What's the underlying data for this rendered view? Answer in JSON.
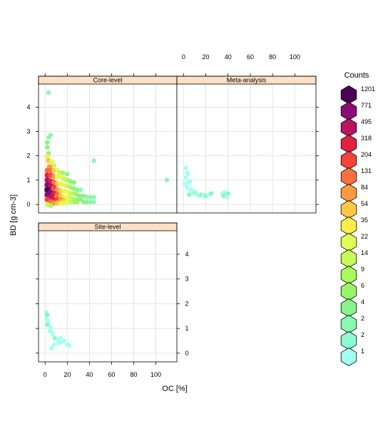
{
  "chart_data": {
    "type": "heatmap",
    "subtype": "hexbin-lattice",
    "xlabel": "OC [%]",
    "ylabel": "BD [g cm-3]",
    "xlim": [
      -6,
      119
    ],
    "ylim": [
      -0.35,
      4.95
    ],
    "x_ticks": [
      0,
      20,
      40,
      60,
      80,
      100
    ],
    "y_ticks": [
      0,
      1,
      2,
      3,
      4
    ],
    "grid": true,
    "panels": [
      {
        "name": "Core-level",
        "hexes": [
          [
            3,
            4.6,
            3
          ],
          [
            5,
            2.85,
            2
          ],
          [
            3,
            2.75,
            2
          ],
          [
            2,
            2.55,
            4
          ],
          [
            2,
            2.35,
            5
          ],
          [
            3,
            2.1,
            6
          ],
          [
            2,
            1.95,
            35
          ],
          [
            3,
            1.8,
            54
          ],
          [
            6,
            1.75,
            22
          ],
          [
            8,
            1.6,
            14
          ],
          [
            4,
            1.55,
            84
          ],
          [
            2,
            1.4,
            131
          ],
          [
            5,
            1.4,
            131
          ],
          [
            8,
            1.4,
            54
          ],
          [
            11,
            1.4,
            22
          ],
          [
            13,
            1.3,
            14
          ],
          [
            16,
            1.3,
            9
          ],
          [
            20,
            1.25,
            4
          ],
          [
            2,
            1.2,
            318
          ],
          [
            5,
            1.2,
            204
          ],
          [
            8,
            1.15,
            84
          ],
          [
            11,
            1.15,
            35
          ],
          [
            14,
            1.1,
            22
          ],
          [
            17,
            1.05,
            14
          ],
          [
            20,
            1.0,
            9
          ],
          [
            23,
            0.95,
            6
          ],
          [
            26,
            0.9,
            4
          ],
          [
            2,
            1.0,
            495
          ],
          [
            5,
            0.95,
            318
          ],
          [
            8,
            0.9,
            131
          ],
          [
            11,
            0.85,
            54
          ],
          [
            14,
            0.85,
            35
          ],
          [
            17,
            0.8,
            22
          ],
          [
            20,
            0.75,
            14
          ],
          [
            23,
            0.7,
            9
          ],
          [
            26,
            0.65,
            6
          ],
          [
            29,
            0.6,
            4
          ],
          [
            32,
            0.6,
            2
          ],
          [
            2,
            0.8,
            771
          ],
          [
            5,
            0.75,
            495
          ],
          [
            8,
            0.7,
            204
          ],
          [
            11,
            0.6,
            84
          ],
          [
            14,
            0.55,
            54
          ],
          [
            17,
            0.55,
            35
          ],
          [
            20,
            0.5,
            22
          ],
          [
            23,
            0.45,
            14
          ],
          [
            26,
            0.45,
            9
          ],
          [
            29,
            0.4,
            6
          ],
          [
            32,
            0.35,
            4
          ],
          [
            35,
            0.35,
            4
          ],
          [
            38,
            0.3,
            2
          ],
          [
            41,
            0.3,
            2
          ],
          [
            44,
            0.3,
            2
          ],
          [
            2,
            0.6,
            1201
          ],
          [
            5,
            0.5,
            771
          ],
          [
            8,
            0.45,
            318
          ],
          [
            11,
            0.4,
            131
          ],
          [
            14,
            0.35,
            54
          ],
          [
            17,
            0.3,
            35
          ],
          [
            20,
            0.3,
            22
          ],
          [
            23,
            0.25,
            14
          ],
          [
            26,
            0.2,
            9
          ],
          [
            29,
            0.2,
            6
          ],
          [
            32,
            0.2,
            4
          ],
          [
            2,
            0.4,
            771
          ],
          [
            5,
            0.3,
            495
          ],
          [
            8,
            0.2,
            318
          ],
          [
            11,
            0.2,
            204
          ],
          [
            14,
            0.2,
            84
          ],
          [
            17,
            0.15,
            54
          ],
          [
            20,
            0.1,
            22
          ],
          [
            23,
            0.1,
            14
          ],
          [
            26,
            0.1,
            9
          ],
          [
            29,
            0.1,
            6
          ],
          [
            35,
            0.1,
            4
          ],
          [
            38,
            0.1,
            4
          ],
          [
            41,
            0.1,
            2
          ],
          [
            44,
            0.1,
            2
          ],
          [
            2,
            0.2,
            204
          ],
          [
            5,
            0.1,
            131
          ],
          [
            8,
            0.05,
            84
          ],
          [
            11,
            0.05,
            54
          ],
          [
            14,
            0.05,
            35
          ],
          [
            17,
            0.05,
            22
          ],
          [
            2,
            0.0,
            14
          ],
          [
            5,
            -0.05,
            9
          ],
          [
            44,
            1.8,
            2
          ],
          [
            110,
            1.0,
            2
          ]
        ]
      },
      {
        "name": "Meta-analysis",
        "hexes": [
          [
            2,
            1.5,
            1
          ],
          [
            3,
            1.3,
            1
          ],
          [
            2,
            1.1,
            1
          ],
          [
            4,
            0.9,
            1
          ],
          [
            3,
            0.7,
            1
          ],
          [
            6,
            0.6,
            1
          ],
          [
            5,
            0.4,
            2
          ],
          [
            8,
            0.45,
            1
          ],
          [
            10,
            0.5,
            2
          ],
          [
            12,
            0.4,
            1
          ],
          [
            14,
            0.35,
            1
          ],
          [
            16,
            0.4,
            2
          ],
          [
            18,
            0.4,
            1
          ],
          [
            20,
            0.35,
            2
          ],
          [
            22,
            0.4,
            1
          ],
          [
            25,
            0.45,
            2
          ],
          [
            35,
            0.45,
            1
          ],
          [
            36,
            0.35,
            2
          ],
          [
            37,
            0.5,
            1
          ],
          [
            40,
            0.45,
            2
          ],
          [
            39,
            0.3,
            1
          ],
          [
            4,
            1.25,
            1
          ],
          [
            1,
            0.85,
            1
          ],
          [
            6,
            0.95,
            1
          ],
          [
            9,
            0.55,
            1
          ]
        ]
      },
      {
        "name": "Site-level",
        "hexes": [
          [
            1,
            1.65,
            1
          ],
          [
            2,
            1.55,
            2
          ],
          [
            1,
            1.4,
            1
          ],
          [
            3,
            1.3,
            1
          ],
          [
            2,
            1.15,
            2
          ],
          [
            5,
            1.05,
            1
          ],
          [
            4,
            0.9,
            1
          ],
          [
            6,
            0.85,
            1
          ],
          [
            7,
            0.75,
            1
          ],
          [
            9,
            0.6,
            2
          ],
          [
            11,
            0.55,
            1
          ],
          [
            13,
            0.5,
            1
          ],
          [
            15,
            0.45,
            1
          ],
          [
            17,
            0.5,
            1
          ],
          [
            14,
            0.6,
            1
          ],
          [
            8,
            0.35,
            1
          ],
          [
            6,
            0.2,
            1
          ],
          [
            20,
            0.35,
            1
          ],
          [
            22,
            0.3,
            1
          ],
          [
            12,
            0.4,
            1
          ]
        ]
      }
    ],
    "legend": {
      "title": "Counts",
      "placement": "right",
      "levels": [
        {
          "label": "1201",
          "color": "#4b0055"
        },
        {
          "label": "771",
          "color": "#8b0a7a"
        },
        {
          "label": "495",
          "color": "#b5145f"
        },
        {
          "label": "318",
          "color": "#e0213f"
        },
        {
          "label": "204",
          "color": "#f2443a"
        },
        {
          "label": "131",
          "color": "#f7713d"
        },
        {
          "label": "84",
          "color": "#fa9b3f"
        },
        {
          "label": "54",
          "color": "#fdc745"
        },
        {
          "label": "35",
          "color": "#f9ee4a"
        },
        {
          "label": "22",
          "color": "#e1fc55"
        },
        {
          "label": "14",
          "color": "#c5fb56"
        },
        {
          "label": "9",
          "color": "#a9f85c"
        },
        {
          "label": "6",
          "color": "#97f667"
        },
        {
          "label": "4",
          "color": "#86f48b"
        },
        {
          "label": "2",
          "color": "#89f8b0"
        },
        {
          "label": "2",
          "color": "#8cfad1"
        },
        {
          "label": "1",
          "color": "#a3fff1"
        }
      ]
    },
    "strip_color": "#ffe0c4"
  }
}
